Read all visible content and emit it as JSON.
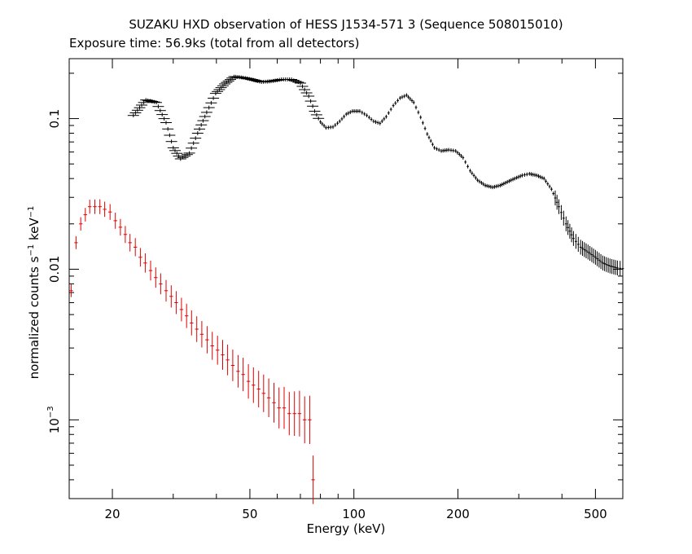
{
  "chart_data": {
    "type": "scatter",
    "title": "SUZAKU HXD observation of HESS J1534-571 3 (Sequence 508015010)",
    "subtitle": "Exposure time: 56.9ks (total from all detectors)",
    "xlabel": "Energy (keV)",
    "ylabel": {
      "prefix": "normalized counts s",
      "exp1": "−1",
      "mid": " keV",
      "exp2": "−1"
    },
    "x_scale": "log",
    "y_scale": "log",
    "xlim": [
      15,
      600
    ],
    "ylim": [
      0.0003,
      0.25
    ],
    "x_ticks": [
      {
        "value": 20,
        "label": "20"
      },
      {
        "value": 50,
        "label": "50"
      },
      {
        "value": 100,
        "label": "100"
      },
      {
        "value": 200,
        "label": "200"
      },
      {
        "value": 500,
        "label": "500"
      }
    ],
    "y_ticks": [
      {
        "value": 0.1,
        "label": "0.1"
      },
      {
        "value": 0.01,
        "label": "0.01"
      },
      {
        "value": 0.001,
        "label": "10",
        "sup": "−3"
      }
    ],
    "grid": false,
    "colors": {
      "frame": "#000000",
      "gso": "#000000",
      "pin": "#e00000"
    },
    "series": [
      {
        "color": "#000000",
        "points": [
          [
            23.0,
            0.105
          ],
          [
            25.0,
            0.133
          ],
          [
            26.8,
            0.128
          ],
          [
            28.6,
            0.094
          ],
          [
            30.0,
            0.064
          ],
          [
            31.5,
            0.054
          ],
          [
            33.4,
            0.059
          ],
          [
            35.3,
            0.08
          ],
          [
            37.5,
            0.11
          ],
          [
            39.8,
            0.147
          ],
          [
            42.3,
            0.17
          ],
          [
            45.0,
            0.19
          ],
          [
            47.8,
            0.187
          ],
          [
            50.6,
            0.182
          ],
          [
            54.0,
            0.175
          ],
          [
            57.6,
            0.177
          ],
          [
            61.7,
            0.182
          ],
          [
            66.0,
            0.182
          ],
          [
            70.0,
            0.172
          ],
          [
            74.0,
            0.141
          ],
          [
            77.0,
            0.112
          ],
          [
            80.0,
            0.095
          ],
          [
            83.0,
            0.087
          ],
          [
            87.0,
            0.088
          ],
          [
            91.0,
            0.096
          ],
          [
            95.0,
            0.107
          ],
          [
            99.0,
            0.112
          ],
          [
            104.0,
            0.112
          ],
          [
            109.0,
            0.105
          ],
          [
            114.0,
            0.096
          ],
          [
            119.0,
            0.093
          ],
          [
            124.0,
            0.103
          ],
          [
            130.0,
            0.122
          ],
          [
            136.0,
            0.137
          ],
          [
            142.0,
            0.143
          ],
          [
            149.0,
            0.128
          ],
          [
            156.0,
            0.102
          ],
          [
            163.0,
            0.079
          ],
          [
            171.0,
            0.064
          ],
          [
            179.0,
            0.061
          ],
          [
            188.0,
            0.062
          ],
          [
            197.0,
            0.061
          ],
          [
            207.0,
            0.055
          ],
          [
            217.0,
            0.045
          ],
          [
            228.0,
            0.039
          ],
          [
            240.0,
            0.036
          ],
          [
            252.0,
            0.035
          ],
          [
            265.0,
            0.036
          ],
          [
            278.0,
            0.038
          ],
          [
            292.0,
            0.04
          ],
          [
            307.0,
            0.042
          ],
          [
            322.0,
            0.043
          ],
          [
            338.0,
            0.042
          ],
          [
            355.0,
            0.04
          ],
          [
            373.0,
            0.034
          ],
          [
            392.0,
            0.026
          ],
          [
            411.0,
            0.02
          ],
          [
            432.0,
            0.016
          ],
          [
            453.0,
            0.014
          ],
          [
            476.0,
            0.013
          ],
          [
            500.0,
            0.012
          ],
          [
            525.0,
            0.011
          ],
          [
            551.0,
            0.0105
          ],
          [
            579.0,
            0.0102
          ],
          [
            600.0,
            0.0101
          ]
        ]
      },
      {
        "color": "#e00000",
        "points": [
          [
            15.2,
            0.0072
          ],
          [
            15.7,
            0.015
          ],
          [
            16.2,
            0.02
          ],
          [
            16.7,
            0.023
          ],
          [
            17.2,
            0.026
          ],
          [
            17.8,
            0.026
          ],
          [
            18.4,
            0.026
          ],
          [
            19.0,
            0.025
          ],
          [
            19.7,
            0.024
          ],
          [
            20.4,
            0.021
          ],
          [
            21.1,
            0.019
          ],
          [
            21.8,
            0.017
          ],
          [
            22.5,
            0.015
          ],
          [
            23.3,
            0.014
          ],
          [
            24.1,
            0.012
          ],
          [
            24.9,
            0.011
          ],
          [
            25.8,
            0.0098
          ],
          [
            26.7,
            0.0088
          ],
          [
            27.6,
            0.008
          ],
          [
            28.6,
            0.0072
          ],
          [
            29.6,
            0.0066
          ],
          [
            30.6,
            0.006
          ],
          [
            31.7,
            0.0054
          ],
          [
            32.8,
            0.0049
          ],
          [
            33.9,
            0.0044
          ],
          [
            35.1,
            0.004
          ],
          [
            36.3,
            0.0037
          ],
          [
            37.6,
            0.0034
          ],
          [
            38.9,
            0.0031
          ],
          [
            40.3,
            0.0029
          ],
          [
            41.7,
            0.0027
          ],
          [
            43.1,
            0.0025
          ],
          [
            44.6,
            0.0023
          ],
          [
            46.2,
            0.0021
          ],
          [
            47.8,
            0.002
          ],
          [
            49.5,
            0.0018
          ],
          [
            51.2,
            0.0017
          ],
          [
            53.0,
            0.0016
          ],
          [
            54.8,
            0.0015
          ],
          [
            56.7,
            0.0014
          ],
          [
            58.7,
            0.0013
          ],
          [
            60.7,
            0.0012
          ],
          [
            62.8,
            0.0012
          ],
          [
            65.0,
            0.0011
          ],
          [
            67.3,
            0.0011
          ],
          [
            69.6,
            0.0011
          ],
          [
            72.0,
            0.001
          ],
          [
            74.5,
            0.001
          ],
          [
            76.2,
            0.0004
          ]
        ]
      }
    ]
  }
}
